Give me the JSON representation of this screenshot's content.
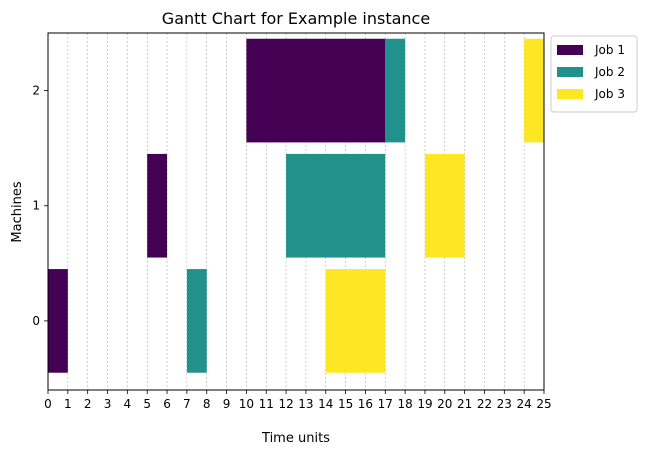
{
  "chart_data": {
    "type": "gantt",
    "title": "Gantt Chart for Example instance",
    "xlabel": "Time units",
    "ylabel": "Machines",
    "xlim": [
      0,
      25
    ],
    "ylim": [
      -0.6,
      2.5
    ],
    "x_ticks": [
      0,
      1,
      2,
      3,
      4,
      5,
      6,
      7,
      8,
      9,
      10,
      11,
      12,
      13,
      14,
      15,
      16,
      17,
      18,
      19,
      20,
      21,
      22,
      23,
      24,
      25
    ],
    "y_ticks": [
      0,
      1,
      2
    ],
    "grid": "vertical dashed",
    "legend_position": "upper right, outside",
    "series": [
      {
        "name": "Job 1",
        "color": "#440154",
        "tasks": [
          {
            "machine": 0,
            "start": 0,
            "end": 1
          },
          {
            "machine": 1,
            "start": 5,
            "end": 6
          },
          {
            "machine": 2,
            "start": 10,
            "end": 17
          }
        ]
      },
      {
        "name": "Job 2",
        "color": "#21918c",
        "tasks": [
          {
            "machine": 0,
            "start": 7,
            "end": 8
          },
          {
            "machine": 1,
            "start": 12,
            "end": 17
          },
          {
            "machine": 2,
            "start": 17,
            "end": 18
          }
        ]
      },
      {
        "name": "Job 3",
        "color": "#fde725",
        "tasks": [
          {
            "machine": 0,
            "start": 14,
            "end": 17
          },
          {
            "machine": 1,
            "start": 19,
            "end": 21
          },
          {
            "machine": 2,
            "start": 24,
            "end": 25
          }
        ]
      }
    ]
  }
}
